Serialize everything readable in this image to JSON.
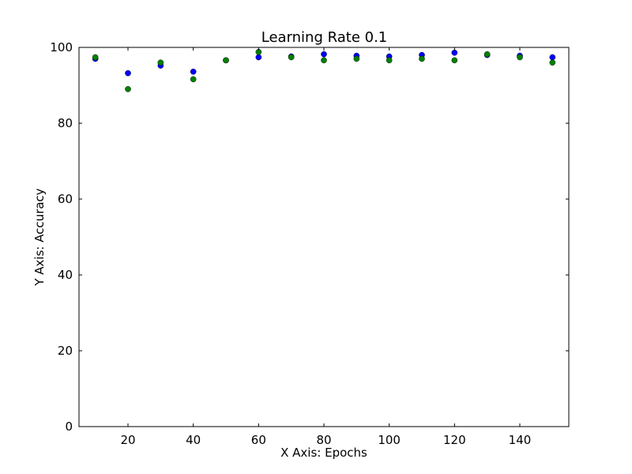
{
  "chart_data": {
    "type": "scatter",
    "title": "Learning Rate 0.1",
    "xlabel": "X Axis: Epochs",
    "ylabel": "Y Axis: Accuracy",
    "xlim": [
      5,
      155
    ],
    "ylim": [
      0,
      100
    ],
    "x_ticks": [
      20,
      40,
      60,
      80,
      100,
      120,
      140
    ],
    "y_ticks": [
      0,
      20,
      40,
      60,
      80,
      100
    ],
    "grid": false,
    "x": [
      10,
      20,
      30,
      40,
      50,
      60,
      70,
      80,
      90,
      100,
      110,
      120,
      130,
      140,
      150
    ],
    "series": [
      {
        "color": "#0000ff",
        "values": [
          97.0,
          93.2,
          95.2,
          93.6,
          96.6,
          97.4,
          97.6,
          98.2,
          97.8,
          97.6,
          98.0,
          98.6,
          98.0,
          97.8,
          97.4
        ]
      },
      {
        "color": "#008000",
        "values": [
          97.4,
          89.0,
          96.0,
          91.6,
          96.6,
          98.8,
          97.4,
          96.6,
          97.0,
          96.6,
          97.0,
          96.6,
          98.2,
          97.4,
          96.0
        ]
      }
    ]
  }
}
